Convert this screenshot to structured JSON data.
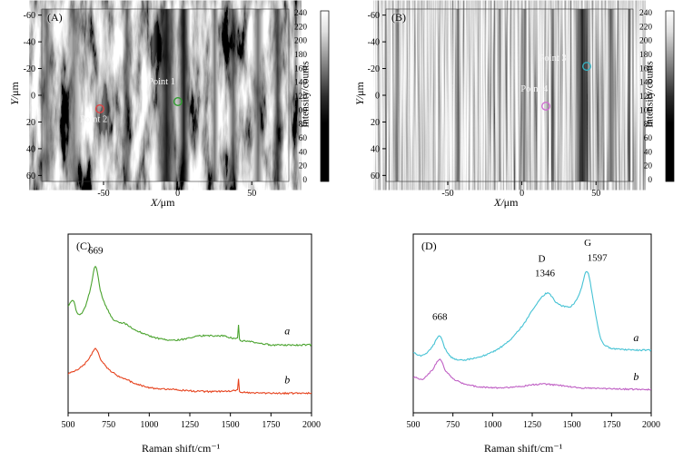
{
  "figure": {
    "background": "#ffffff"
  },
  "panels": {
    "A": {
      "label": "(A)",
      "xlabel": "X/μm",
      "ylabel": "Y/μm",
      "x_ticks": [
        "-50",
        "0",
        "50"
      ],
      "y_ticks": [
        "-60",
        "-40",
        "-20",
        "0",
        "20",
        "40",
        "60"
      ],
      "colorbar": {
        "label": "Intensity/counts",
        "ticks": [
          "240",
          "220",
          "200",
          "180",
          "160",
          "140",
          "120",
          "100",
          "80",
          "60",
          "40",
          "20",
          "0"
        ]
      },
      "points": [
        {
          "label": "Point 1",
          "color": "#2f9e2f",
          "fx": 0.551,
          "fy": 0.537,
          "label_fx": 0.43,
          "label_fy": 0.437
        },
        {
          "label": "Point 2",
          "color": "#e04545",
          "fx": 0.235,
          "fy": 0.579,
          "label_fx": 0.155,
          "label_fy": 0.655
        }
      ]
    },
    "B": {
      "label": "(B)",
      "xlabel": "X/μm",
      "ylabel": "Y/μm",
      "x_ticks": [
        "-50",
        "0",
        "50"
      ],
      "y_ticks": [
        "-60",
        "-40",
        "-20",
        "0",
        "20",
        "40",
        "60"
      ],
      "colorbar": {
        "label": "Intensity/counts",
        "ticks": [
          "240",
          "220",
          "200",
          "180",
          "160",
          "140",
          "120",
          "100",
          "80",
          "60",
          "40",
          "20",
          "0"
        ]
      },
      "points": [
        {
          "label": "Point 3",
          "color": "#35b0c0",
          "fx": 0.8125,
          "fy": 0.332,
          "label_fx": 0.62,
          "label_fy": 0.3
        },
        {
          "label": "Point 4",
          "color": "#cf6fd0",
          "fx": 0.647,
          "fy": 0.563,
          "label_fx": 0.545,
          "label_fy": 0.48
        }
      ]
    },
    "C": {
      "label": "(C)"
    },
    "D": {
      "label": "(D)"
    }
  },
  "chart_data": [
    {
      "type": "line",
      "panel": "C",
      "xlabel": "Raman shift/cm⁻¹",
      "xlim": [
        500,
        2000
      ],
      "x_ticks": [
        500,
        750,
        1000,
        1250,
        1500,
        1750,
        2000
      ],
      "peaks": [
        669
      ],
      "annotations": [
        {
          "text": "669",
          "x": 669,
          "yf": 0.89
        }
      ],
      "series": [
        {
          "name": "a",
          "color": "#4aa32e",
          "label_x": 1850,
          "label_dy": -12,
          "points": [
            [
              500,
              0.6
            ],
            [
              530,
              0.63
            ],
            [
              560,
              0.55
            ],
            [
              600,
              0.58
            ],
            [
              640,
              0.7
            ],
            [
              669,
              0.82
            ],
            [
              700,
              0.68
            ],
            [
              730,
              0.6
            ],
            [
              780,
              0.52
            ],
            [
              850,
              0.5
            ],
            [
              900,
              0.47
            ],
            [
              1000,
              0.43
            ],
            [
              1100,
              0.41
            ],
            [
              1200,
              0.41
            ],
            [
              1300,
              0.43
            ],
            [
              1450,
              0.43
            ],
            [
              1545,
              0.42
            ],
            [
              1550,
              0.49
            ],
            [
              1555,
              0.41
            ],
            [
              1600,
              0.4
            ],
            [
              1750,
              0.38
            ],
            [
              2000,
              0.38
            ]
          ]
        },
        {
          "name": "b",
          "color": "#e6421d",
          "label_x": 1850,
          "label_dy": -11,
          "points": [
            [
              500,
              0.22
            ],
            [
              550,
              0.24
            ],
            [
              600,
              0.27
            ],
            [
              640,
              0.32
            ],
            [
              669,
              0.36
            ],
            [
              700,
              0.3
            ],
            [
              740,
              0.25
            ],
            [
              800,
              0.21
            ],
            [
              900,
              0.17
            ],
            [
              1000,
              0.14
            ],
            [
              1150,
              0.13
            ],
            [
              1300,
              0.12
            ],
            [
              1450,
              0.12
            ],
            [
              1545,
              0.13
            ],
            [
              1550,
              0.19
            ],
            [
              1555,
              0.12
            ],
            [
              1700,
              0.11
            ],
            [
              2000,
              0.11
            ]
          ]
        }
      ]
    },
    {
      "type": "line",
      "panel": "D",
      "xlabel": "Raman shift/cm⁻¹",
      "xlim": [
        500,
        2000
      ],
      "x_ticks": [
        500,
        750,
        1000,
        1250,
        1500,
        1750,
        2000
      ],
      "peaks": [
        668,
        1346,
        1597
      ],
      "annotations": [
        {
          "text": "668",
          "x": 668,
          "yf": 0.52
        },
        {
          "text": "D",
          "x": 1310,
          "yf": 0.845
        },
        {
          "text": "1346",
          "x": 1330,
          "yf": 0.765
        },
        {
          "text": "G",
          "x": 1600,
          "yf": 0.935
        },
        {
          "text": "1597",
          "x": 1660,
          "yf": 0.85
        }
      ],
      "series": [
        {
          "name": "a",
          "color": "#45c2d4",
          "label_x": 1905,
          "label_dy": -10,
          "points": [
            [
              500,
              0.34
            ],
            [
              540,
              0.32
            ],
            [
              580,
              0.33
            ],
            [
              620,
              0.37
            ],
            [
              668,
              0.43
            ],
            [
              700,
              0.36
            ],
            [
              740,
              0.31
            ],
            [
              800,
              0.295
            ],
            [
              900,
              0.31
            ],
            [
              1000,
              0.34
            ],
            [
              1100,
              0.4
            ],
            [
              1200,
              0.5
            ],
            [
              1270,
              0.6
            ],
            [
              1346,
              0.67
            ],
            [
              1400,
              0.62
            ],
            [
              1450,
              0.595
            ],
            [
              1500,
              0.6
            ],
            [
              1550,
              0.67
            ],
            [
              1597,
              0.79
            ],
            [
              1640,
              0.6
            ],
            [
              1680,
              0.42
            ],
            [
              1720,
              0.37
            ],
            [
              1800,
              0.355
            ],
            [
              2000,
              0.35
            ]
          ]
        },
        {
          "name": "b",
          "color": "#bf5fc4",
          "label_x": 1905,
          "label_dy": -10,
          "points": [
            [
              500,
              0.2
            ],
            [
              560,
              0.19
            ],
            [
              620,
              0.24
            ],
            [
              668,
              0.3
            ],
            [
              700,
              0.24
            ],
            [
              750,
              0.19
            ],
            [
              850,
              0.155
            ],
            [
              1000,
              0.14
            ],
            [
              1150,
              0.145
            ],
            [
              1300,
              0.16
            ],
            [
              1400,
              0.155
            ],
            [
              1550,
              0.14
            ],
            [
              1700,
              0.135
            ],
            [
              2000,
              0.13
            ]
          ]
        }
      ]
    }
  ]
}
